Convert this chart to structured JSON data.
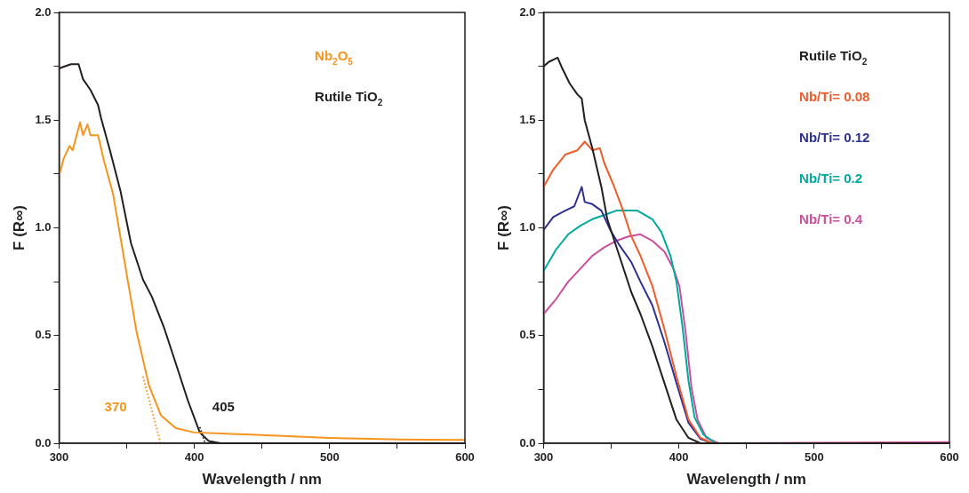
{
  "chart_data": [
    {
      "type": "line",
      "xlabel": "Wavelength / nm",
      "ylabel": "F (R∞)",
      "marker": "none",
      "grid": false,
      "xlim": [
        300,
        600
      ],
      "xticks": [
        300,
        {
          "value": 350,
          "label": null
        },
        400,
        {
          "value": 450,
          "label": null
        },
        500,
        {
          "value": 550,
          "label": null
        },
        600
      ],
      "ylim": [
        0,
        2
      ],
      "yticks": [
        {
          "value": 0,
          "label": "0.0"
        },
        {
          "value": 0.25,
          "label": null
        },
        {
          "value": 0.5,
          "label": "0.5"
        },
        {
          "value": 0.75,
          "label": null
        },
        {
          "value": 1,
          "label": "1.0"
        },
        {
          "value": 1.25,
          "label": null
        },
        {
          "value": 1.5,
          "label": "1.5"
        },
        {
          "value": 1.75,
          "label": null
        },
        {
          "value": 2,
          "label": "2.0"
        }
      ],
      "annotations": [
        "370",
        "405"
      ],
      "series": [
        {
          "name": "Nb$_{2}$O$_{5}$",
          "color": "#f7941d",
          "x": [
            300,
            303.3,
            307.7,
            310,
            315.5,
            317.7,
            321,
            323.2,
            328.8,
            333.2,
            339.8,
            344.2,
            350.9,
            357.5,
            366.4,
            375.2,
            386.3,
            400,
            441.6,
            499.6,
            552,
            600
          ],
          "values": [
            1.24,
            1.32,
            1.38,
            1.36,
            1.49,
            1.43,
            1.48,
            1.43,
            1.43,
            1.31,
            1.16,
            1.0,
            0.75,
            0.51,
            0.27,
            0.13,
            0.07,
            0.05,
            0.04,
            0.025,
            0.018,
            0.015
          ]
        },
        {
          "name": "Rutile TiO$_{2}$",
          "color": "#231f20",
          "x": [
            300,
            308.8,
            314.4,
            317.7,
            323.2,
            328.8,
            331,
            337.6,
            345.4,
            353.1,
            362,
            368.6,
            377.4,
            386.3,
            395.1,
            404,
            410.6,
            419.5,
            600
          ],
          "values": [
            1.74,
            1.76,
            1.76,
            1.69,
            1.64,
            1.57,
            1.51,
            1.36,
            1.17,
            0.93,
            0.76,
            0.68,
            0.54,
            0.37,
            0.2,
            0.05,
            0.01,
            0,
            0
          ]
        },
        {
          "type": "line",
          "line_style": "dotted",
          "color": "#f7941d",
          "x": [
            362,
            375
          ],
          "values": [
            0.31,
            0
          ]
        },
        {
          "type": "line",
          "line_style": "dotted",
          "color": "#231f20",
          "x": [
            404,
            408
          ],
          "values": [
            0.075,
            0
          ]
        }
      ]
    },
    {
      "type": "line",
      "xlabel": "Wavelength / nm",
      "ylabel": "F (R∞)",
      "marker": "none",
      "grid": false,
      "xlim": [
        300,
        600
      ],
      "xticks": [
        300,
        {
          "value": 350,
          "label": null
        },
        400,
        {
          "value": 450,
          "label": null
        },
        500,
        {
          "value": 550,
          "label": null
        },
        600
      ],
      "ylim": [
        0,
        2
      ],
      "yticks": [
        {
          "value": 0,
          "label": "0.0"
        },
        {
          "value": 0.25,
          "label": null
        },
        {
          "value": 0.5,
          "label": "0.5"
        },
        {
          "value": 0.75,
          "label": null
        },
        {
          "value": 1,
          "label": "1.0"
        },
        {
          "value": 1.25,
          "label": null
        },
        {
          "value": 1.5,
          "label": "1.5"
        },
        {
          "value": 1.75,
          "label": null
        },
        {
          "value": 2,
          "label": "2.0"
        }
      ],
      "series": [
        {
          "name": "Rutile TiO$_{2}$",
          "color": "#231f20",
          "x": [
            300,
            303.8,
            310.4,
            313.8,
            319.3,
            324.9,
            328.2,
            330.4,
            336,
            342.7,
            347.1,
            356,
            364.9,
            371.6,
            380.4,
            389.3,
            398.2,
            407.1,
            416,
            600
          ],
          "values": [
            1.75,
            1.77,
            1.79,
            1.74,
            1.67,
            1.62,
            1.6,
            1.5,
            1.37,
            1.19,
            1.04,
            0.87,
            0.7,
            0.6,
            0.45,
            0.28,
            0.11,
            0.025,
            0,
            0
          ]
        },
        {
          "name": "Nb/Ti= 0.08",
          "color": "#f15a29",
          "x": [
            300,
            307.1,
            316,
            324.9,
            330.4,
            336,
            341.6,
            344.9,
            351.6,
            358.2,
            364.9,
            371.6,
            380.4,
            389.3,
            398.2,
            407.1,
            416,
            424.9,
            600
          ],
          "values": [
            1.19,
            1.27,
            1.34,
            1.36,
            1.4,
            1.36,
            1.37,
            1.3,
            1.2,
            1.09,
            0.96,
            0.87,
            0.73,
            0.53,
            0.31,
            0.11,
            0.025,
            0,
            0
          ]
        },
        {
          "name": "Nb/Ti= 0.12",
          "color": "#2e3192",
          "x": [
            300,
            307.1,
            316,
            322.7,
            328.2,
            330.4,
            336,
            342.7,
            349.3,
            356,
            364.9,
            371.6,
            380.4,
            389.3,
            398.2,
            407.1,
            416,
            424.9,
            600
          ],
          "values": [
            0.99,
            1.05,
            1.08,
            1.1,
            1.19,
            1.12,
            1.11,
            1.08,
            0.99,
            0.92,
            0.84,
            0.75,
            0.64,
            0.47,
            0.28,
            0.095,
            0.02,
            0,
            0
          ]
        },
        {
          "name": "Nb/Ti= 0.2",
          "color": "#00a99d",
          "x": [
            300,
            309.3,
            318.2,
            327.1,
            336,
            344.9,
            353.8,
            369.3,
            380.4,
            387.1,
            393.8,
            398.2,
            402.7,
            407.1,
            411.6,
            418.2,
            427.1,
            600
          ],
          "values": [
            0.8,
            0.9,
            0.97,
            1.01,
            1.04,
            1.06,
            1.08,
            1.08,
            1.04,
            0.98,
            0.87,
            0.75,
            0.54,
            0.29,
            0.12,
            0.04,
            0,
            0
          ]
        },
        {
          "name": "Nb/Ti= 0.4",
          "color": "#cc4e9e",
          "x": [
            300,
            309.3,
            318.2,
            327.1,
            336,
            344.9,
            353.8,
            362.7,
            371.6,
            380.4,
            389.3,
            396,
            400.4,
            404.9,
            409.3,
            413.8,
            420.4,
            429.3,
            600
          ],
          "values": [
            0.6,
            0.67,
            0.75,
            0.81,
            0.87,
            0.91,
            0.94,
            0.96,
            0.97,
            0.94,
            0.89,
            0.81,
            0.73,
            0.52,
            0.26,
            0.11,
            0.025,
            0,
            0.005
          ]
        }
      ]
    }
  ]
}
